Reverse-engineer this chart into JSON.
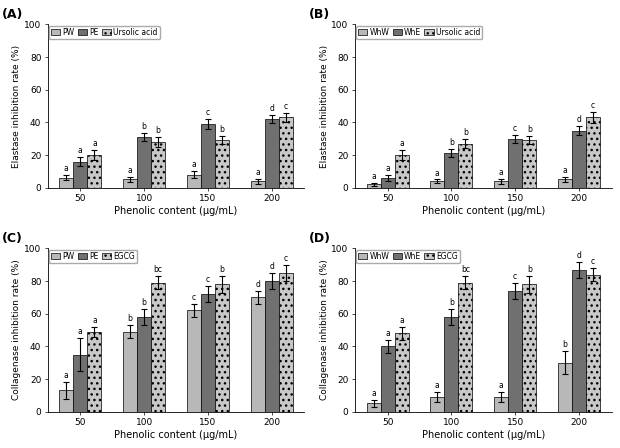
{
  "A": {
    "title": "(A)",
    "ylabel": "Elastase inhibition rate (%)",
    "xlabel": "Phenolic content (μg/mL)",
    "legend_labels": [
      "PW",
      "PE",
      "Ursolic acid"
    ],
    "bar_colors": [
      "#b8b8b8",
      "#707070",
      "#c8c8c8"
    ],
    "bar_hatches": [
      "",
      "",
      "..."
    ],
    "x_labels": [
      "50",
      "100",
      "150",
      "200"
    ],
    "values": [
      [
        6,
        5,
        8,
        4
      ],
      [
        16,
        31,
        39,
        42
      ],
      [
        20,
        28,
        29,
        43
      ]
    ],
    "errors": [
      [
        1.5,
        1.5,
        2.0,
        1.5
      ],
      [
        2.5,
        2.5,
        3.0,
        2.5
      ],
      [
        3.0,
        3.0,
        2.5,
        3.0
      ]
    ],
    "letters": [
      [
        "a",
        "a",
        "a",
        "a"
      ],
      [
        "a",
        "b",
        "c",
        "d"
      ],
      [
        "a",
        "b",
        "b",
        "c"
      ]
    ],
    "ylim": [
      0,
      100
    ],
    "yticks": [
      0,
      20,
      40,
      60,
      80,
      100
    ]
  },
  "B": {
    "title": "(B)",
    "ylabel": "Elastase inhibition rate (%)",
    "xlabel": "Phenolic content (μg/mL)",
    "legend_labels": [
      "WhW",
      "WhE",
      "Ursolic acid"
    ],
    "bar_colors": [
      "#b8b8b8",
      "#707070",
      "#c8c8c8"
    ],
    "bar_hatches": [
      "",
      "",
      "..."
    ],
    "x_labels": [
      "50",
      "100",
      "150",
      "200"
    ],
    "values": [
      [
        2,
        4,
        4,
        5
      ],
      [
        6,
        21,
        30,
        35
      ],
      [
        20,
        27,
        29,
        43
      ]
    ],
    "errors": [
      [
        1.0,
        1.0,
        1.5,
        1.5
      ],
      [
        2.0,
        2.5,
        2.5,
        2.5
      ],
      [
        3.0,
        3.0,
        2.5,
        3.5
      ]
    ],
    "letters": [
      [
        "a",
        "a",
        "a",
        "a"
      ],
      [
        "a",
        "b",
        "c",
        "d"
      ],
      [
        "a",
        "b",
        "b",
        "c"
      ]
    ],
    "ylim": [
      0,
      100
    ],
    "yticks": [
      0,
      20,
      40,
      60,
      80,
      100
    ]
  },
  "C": {
    "title": "(C)",
    "ylabel": "Collagenase inhibition rate (%)",
    "xlabel": "Phenolic content (μg/mL)",
    "legend_labels": [
      "PW",
      "PE",
      "EGCG"
    ],
    "bar_colors": [
      "#b8b8b8",
      "#707070",
      "#c8c8c8"
    ],
    "bar_hatches": [
      "",
      "",
      "..."
    ],
    "x_labels": [
      "50",
      "100",
      "150",
      "200"
    ],
    "values": [
      [
        13,
        49,
        62,
        70
      ],
      [
        35,
        58,
        72,
        80
      ],
      [
        49,
        79,
        78,
        85
      ]
    ],
    "errors": [
      [
        5.0,
        4.0,
        4.0,
        4.0
      ],
      [
        10.0,
        5.0,
        5.0,
        5.0
      ],
      [
        3.0,
        4.0,
        5.0,
        5.0
      ]
    ],
    "letters": [
      [
        "a",
        "b",
        "c",
        "d"
      ],
      [
        "a",
        "b",
        "c",
        "d"
      ],
      [
        "a",
        "bc",
        "b",
        "c"
      ]
    ],
    "ylim": [
      0,
      100
    ],
    "yticks": [
      0,
      20,
      40,
      60,
      80,
      100
    ]
  },
  "D": {
    "title": "(D)",
    "ylabel": "Collagenase inhibition rate (%)",
    "xlabel": "Phenolic content (μg/mL)",
    "legend_labels": [
      "WhW",
      "WhE",
      "EGCG"
    ],
    "bar_colors": [
      "#b8b8b8",
      "#707070",
      "#c8c8c8"
    ],
    "bar_hatches": [
      "",
      "",
      "..."
    ],
    "x_labels": [
      "50",
      "100",
      "150",
      "200"
    ],
    "values": [
      [
        5,
        9,
        9,
        30
      ],
      [
        40,
        58,
        74,
        87
      ],
      [
        48,
        79,
        78,
        84
      ]
    ],
    "errors": [
      [
        2.0,
        3.0,
        3.0,
        7.0
      ],
      [
        4.0,
        5.0,
        5.0,
        5.0
      ],
      [
        4.0,
        4.0,
        5.0,
        4.0
      ]
    ],
    "letters": [
      [
        "a",
        "a",
        "a",
        "b"
      ],
      [
        "a",
        "b",
        "c",
        "d"
      ],
      [
        "a",
        "bc",
        "b",
        "c"
      ]
    ],
    "ylim": [
      0,
      100
    ],
    "yticks": [
      0,
      20,
      40,
      60,
      80,
      100
    ]
  }
}
